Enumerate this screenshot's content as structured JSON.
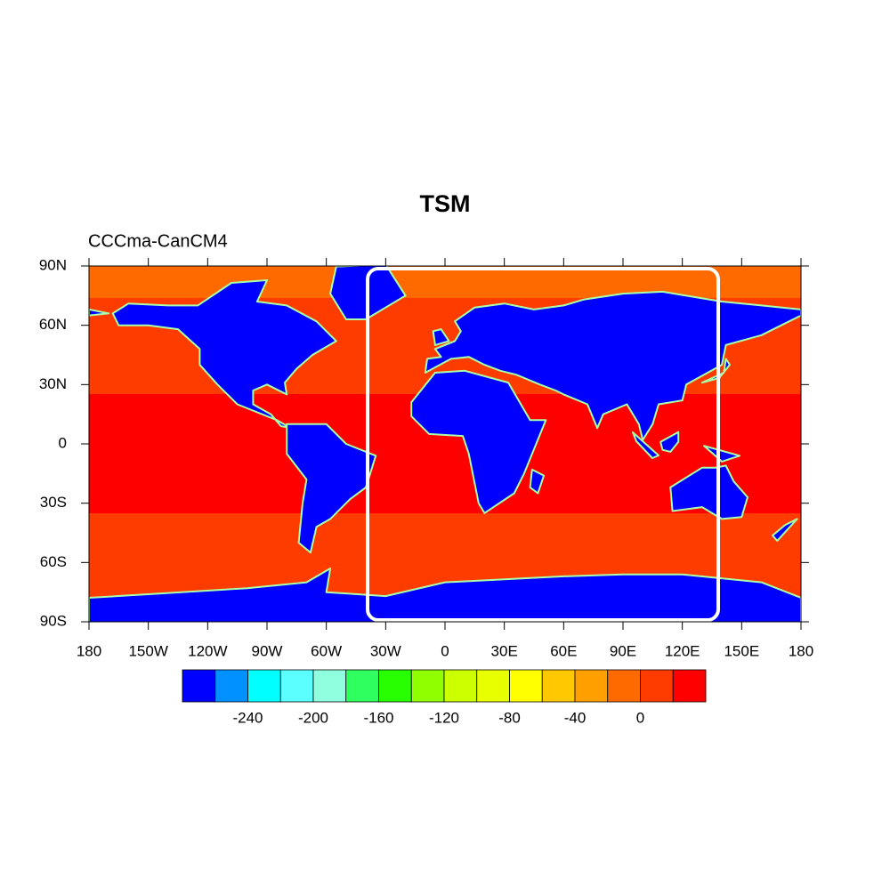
{
  "chart_data": {
    "type": "contour-map",
    "title": "TSM",
    "subtitle": "CCCma-CanCM4",
    "xlim": [
      -180,
      180
    ],
    "xticks": [
      {
        "value": -180,
        "label": "180"
      },
      {
        "value": -150,
        "label": "150W"
      },
      {
        "value": -120,
        "label": "120W"
      },
      {
        "value": -90,
        "label": "90W"
      },
      {
        "value": -60,
        "label": "60W"
      },
      {
        "value": -30,
        "label": "30W"
      },
      0,
      {
        "value": 30,
        "label": "30E"
      },
      {
        "value": 60,
        "label": "60E"
      },
      {
        "value": 90,
        "label": "90E"
      },
      {
        "value": 120,
        "label": "120E"
      },
      {
        "value": 150,
        "label": "150E"
      },
      {
        "value": 180,
        "label": "180"
      }
    ],
    "ylim": [
      -90,
      90
    ],
    "yticks": [
      {
        "value": -90,
        "label": "90S"
      },
      {
        "value": -60,
        "label": "60S"
      },
      {
        "value": -30,
        "label": "30S"
      },
      0,
      {
        "value": 30,
        "label": "30N"
      },
      {
        "value": 60,
        "label": "60N"
      },
      {
        "value": 90,
        "label": "90N"
      }
    ],
    "colorbar": {
      "lim": [
        -280,
        40
      ],
      "ticks": [
        -240,
        -200,
        -160,
        -120,
        -80,
        -40,
        0
      ],
      "colors": [
        "#0000ff",
        "#0090ff",
        "#00ffff",
        "#5cffff",
        "#90ffe0",
        "#30ff60",
        "#28ff00",
        "#90ff00",
        "#ccff00",
        "#e8ff00",
        "#ffff00",
        "#ffc800",
        "#ffa000",
        "#ff6a00",
        "#ff3c00",
        "#ff0000"
      ]
    }
  }
}
